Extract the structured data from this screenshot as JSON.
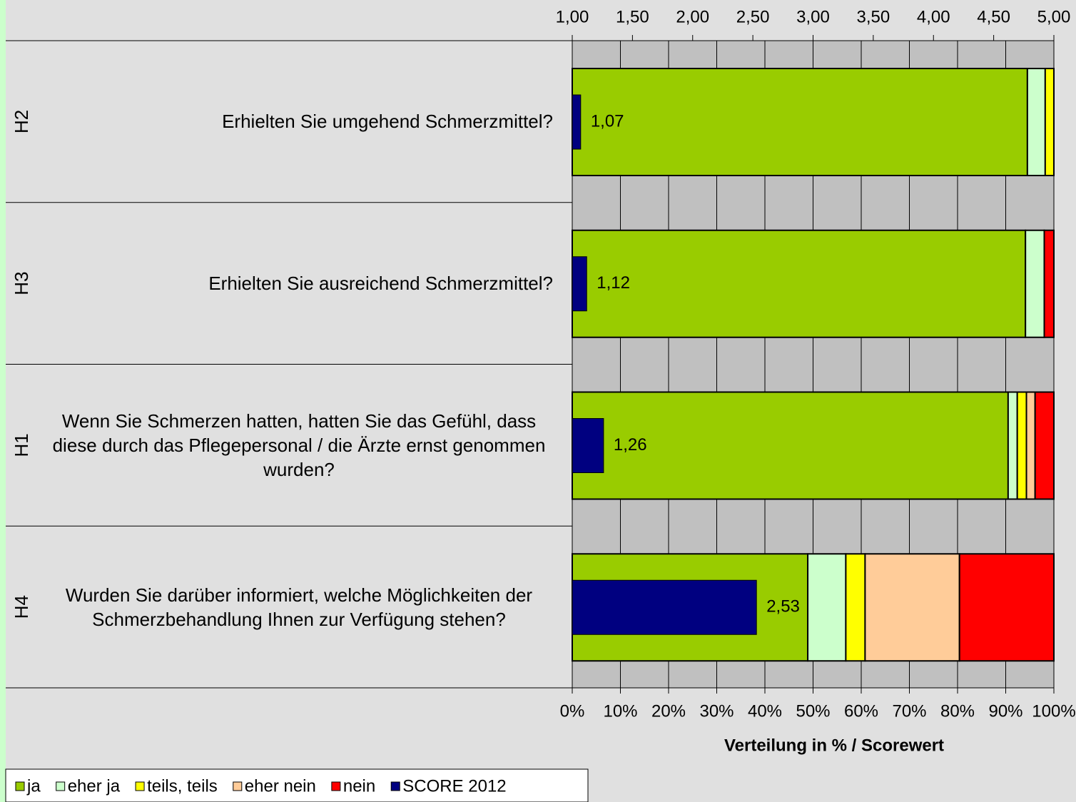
{
  "chart_data": {
    "type": "bar",
    "horizontal": true,
    "stacked": true,
    "codes": [
      "H2",
      "H3",
      "H1",
      "H4"
    ],
    "categories": [
      "Erhielten Sie umgehend Schmerzmittel?",
      "Erhielten Sie ausreichend Schmerzmittel?",
      "Wenn Sie Schmerzen hatten, hatten Sie das Gefühl, dass diese durch das Pflegepersonal / die Ärzte ernst genommen wurden?",
      "Wurden Sie darüber informiert, welche Möglichkeiten der Schmerzbehandlung Ihnen zur Verfügung stehen?"
    ],
    "series": [
      {
        "name": "ja",
        "color": "#99cc00",
        "values": [
          94.5,
          94.1,
          90.5,
          48.9
        ]
      },
      {
        "name": "eher ja",
        "color": "#ccffcc",
        "values": [
          3.7,
          3.9,
          1.9,
          7.9
        ]
      },
      {
        "name": "teils, teils",
        "color": "#ffff00",
        "values": [
          1.8,
          0,
          1.9,
          4.0
        ]
      },
      {
        "name": "eher nein",
        "color": "#ffcc99",
        "values": [
          0,
          0,
          1.8,
          19.6
        ]
      },
      {
        "name": "nein",
        "color": "#ff0000",
        "values": [
          0,
          2.0,
          3.9,
          19.6
        ]
      },
      {
        "name": "SCORE 2012",
        "color": "#000080",
        "axis": "x2",
        "values": [
          1.07,
          1.12,
          1.26,
          2.53
        ],
        "value_labels": [
          "1,07",
          "1,12",
          "1,26",
          "2,53"
        ]
      }
    ],
    "xlim": [
      0,
      100
    ],
    "xticks": [
      {
        "value": 0,
        "label": "0%"
      },
      {
        "value": 10,
        "label": "10%"
      },
      {
        "value": 20,
        "label": "20%"
      },
      {
        "value": 30,
        "label": "30%"
      },
      {
        "value": 40,
        "label": "40%"
      },
      {
        "value": 50,
        "label": "50%"
      },
      {
        "value": 60,
        "label": "60%"
      },
      {
        "value": 70,
        "label": "70%"
      },
      {
        "value": 80,
        "label": "80%"
      },
      {
        "value": 90,
        "label": "90%"
      },
      {
        "value": 100,
        "label": "100%"
      }
    ],
    "x2lim": [
      1,
      5
    ],
    "x2ticks": [
      {
        "value": 1,
        "label": "1,00"
      },
      {
        "value": 1.5,
        "label": "1,50"
      },
      {
        "value": 2,
        "label": "2,00"
      },
      {
        "value": 2.5,
        "label": "2,50"
      },
      {
        "value": 3,
        "label": "3,00"
      },
      {
        "value": 3.5,
        "label": "3,50"
      },
      {
        "value": 4,
        "label": "4,00"
      },
      {
        "value": 4.5,
        "label": "4,50"
      },
      {
        "value": 5,
        "label": "5,00"
      }
    ],
    "xlabel": "Verteilung in % / Scorewert",
    "grid": true,
    "legend": "bottom-left"
  }
}
